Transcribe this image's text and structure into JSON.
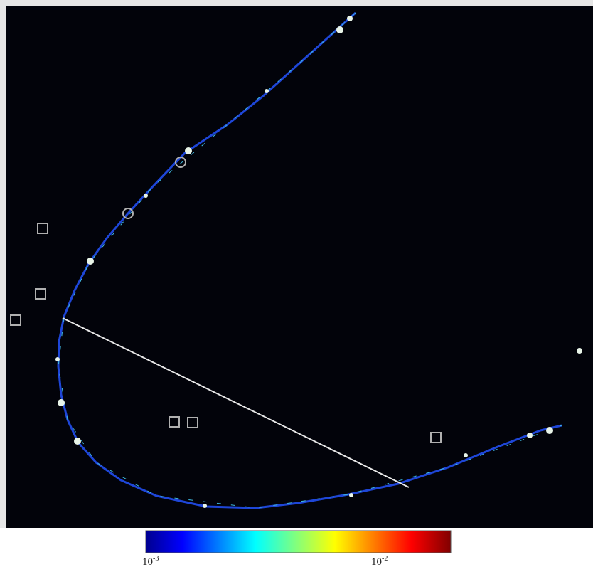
{
  "colorbar": {
    "scale": "log",
    "labels": [
      {
        "base": "10",
        "exponent": "-3"
      },
      {
        "base": "10",
        "exponent": "-2"
      }
    ]
  }
}
